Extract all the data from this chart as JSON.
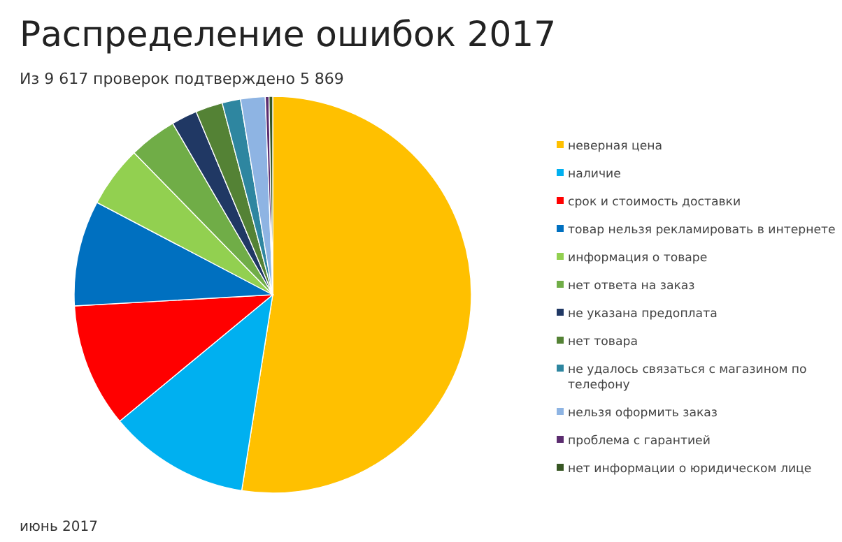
{
  "chart_data": {
    "type": "pie",
    "title": "Распределение ошибок 2017",
    "subtitle": "Из 9 617 проверок подтверждено 5 869",
    "categories": [
      "неверная цена",
      "наличие",
      "срок и стоимость доставки",
      "товар нельзя рекламировать в интернете",
      "информация о товаре",
      "нет ответа на заказ",
      "не указана предоплата",
      "нет товара",
      "не удалось связаться с магазином по телефону",
      "нельзя оформить заказ",
      "проблема с гарантией",
      "нет информации о юридическом лице"
    ],
    "values": [
      52.5,
      11.5,
      10.1,
      8.6,
      5,
      3.9,
      2.1,
      2.2,
      1.5,
      2,
      0.3,
      0.3
    ],
    "colors": [
      "#ffc000",
      "#00b0f0",
      "#ff0000",
      "#0070c0",
      "#92d050",
      "#70ad47",
      "#203864",
      "#548235",
      "#2e86a0",
      "#8eb4e3",
      "#5b2c6f",
      "#375623"
    ],
    "legend": "right",
    "annotations": [
      "июнь 2017"
    ]
  }
}
